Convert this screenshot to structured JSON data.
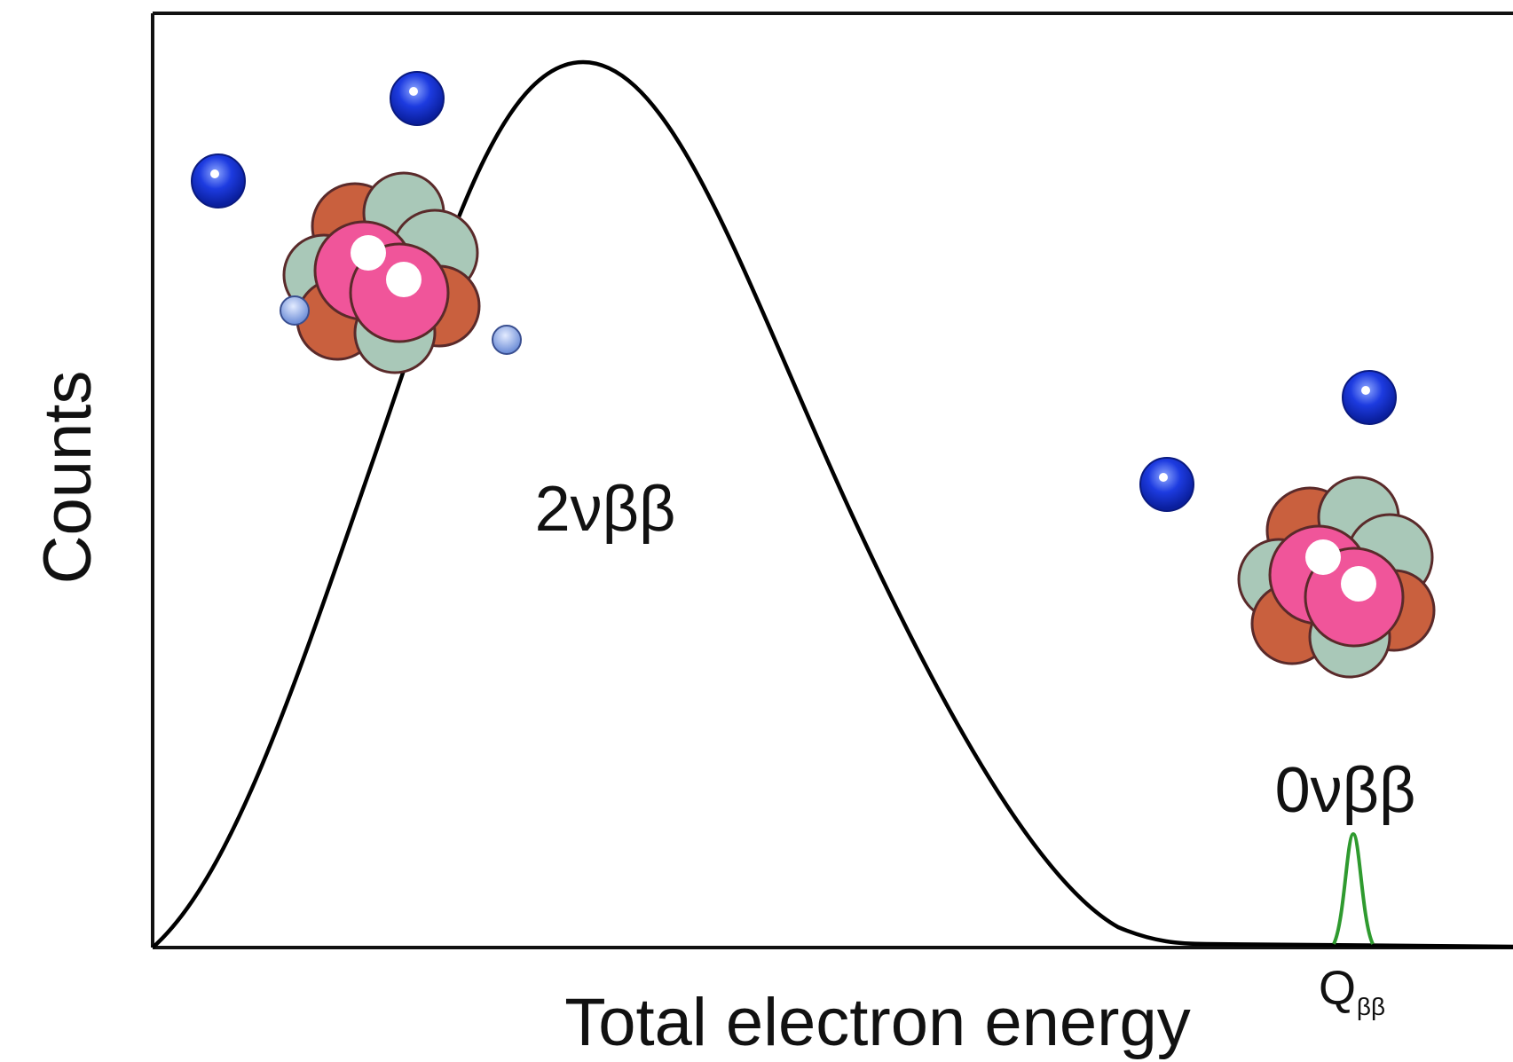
{
  "axes": {
    "y_label": "Counts",
    "x_label": "Total electron energy"
  },
  "labels": {
    "two_neutrino": "2νββ",
    "zero_neutrino": "0νββ",
    "q_symbol": "Q",
    "q_subscript": "ββ"
  }
}
